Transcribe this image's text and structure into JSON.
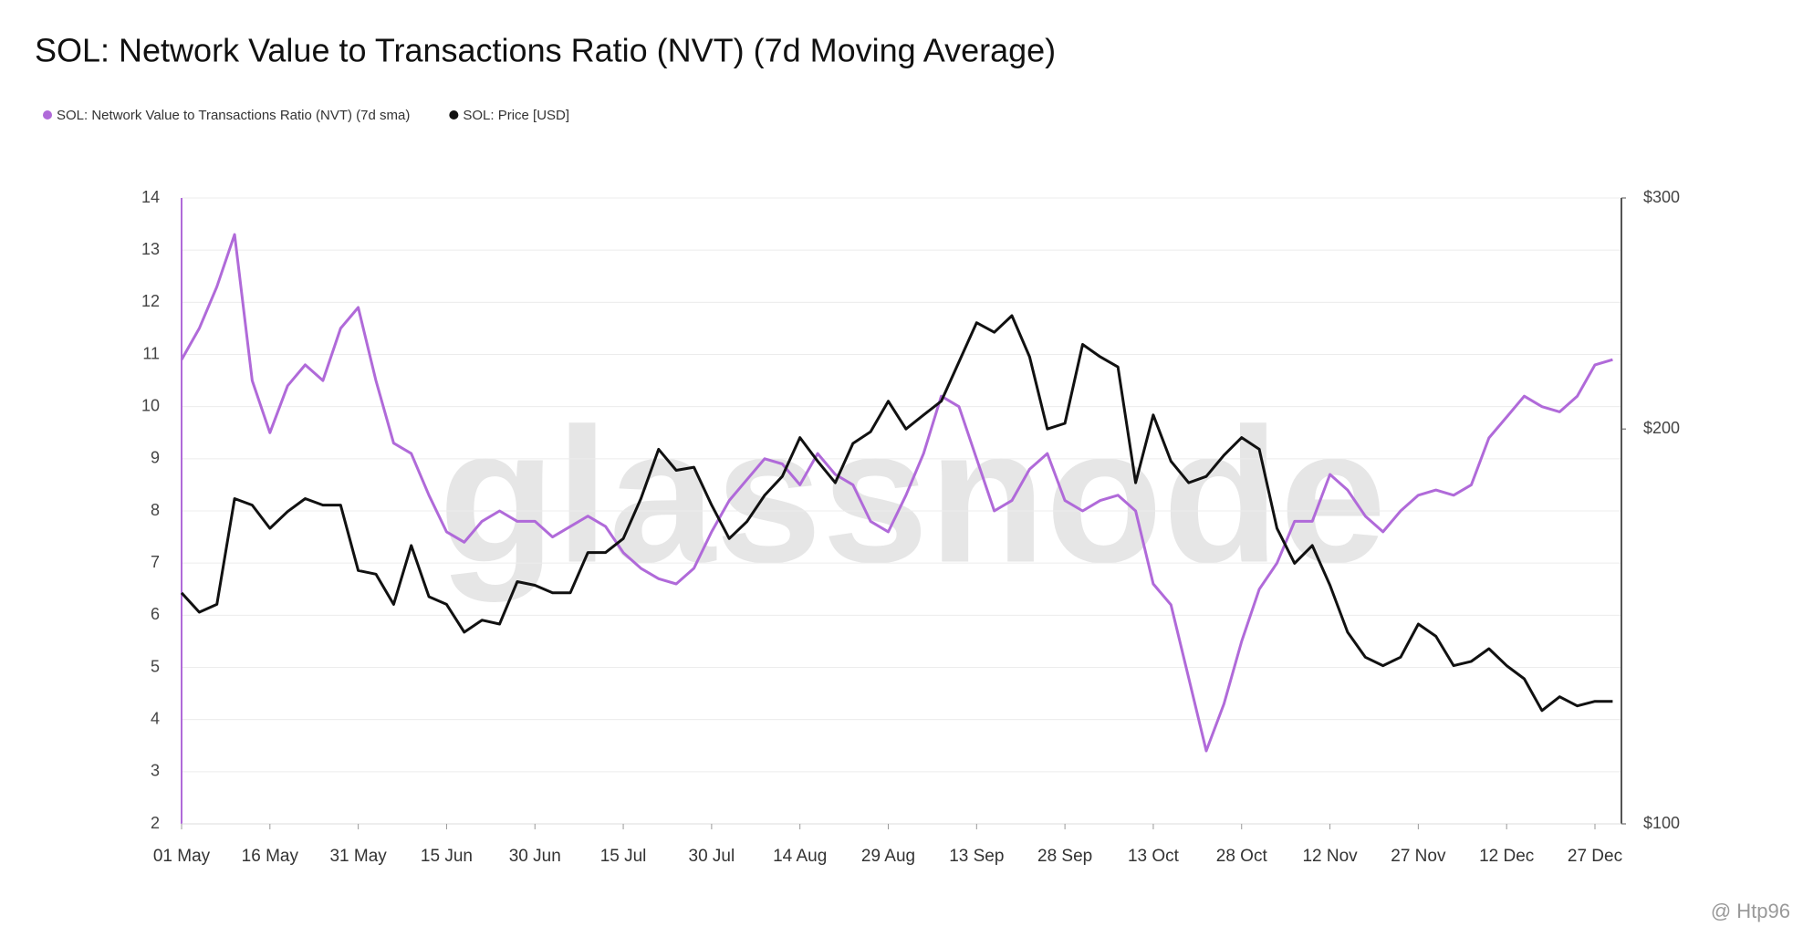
{
  "chart_data": {
    "type": "line",
    "title": "SOL: Network Value to Transactions Ratio (NVT) (7d Moving Average)",
    "watermark": "glassnode",
    "credit": "@ Htp96",
    "x": [
      "01 May",
      "04 May",
      "07 May",
      "10 May",
      "13 May",
      "16 May",
      "19 May",
      "22 May",
      "25 May",
      "28 May",
      "31 May",
      "03 Jun",
      "06 Jun",
      "09 Jun",
      "12 Jun",
      "15 Jun",
      "18 Jun",
      "21 Jun",
      "24 Jun",
      "27 Jun",
      "30 Jun",
      "03 Jul",
      "06 Jul",
      "09 Jul",
      "12 Jul",
      "15 Jul",
      "18 Jul",
      "21 Jul",
      "24 Jul",
      "27 Jul",
      "30 Jul",
      "02 Aug",
      "05 Aug",
      "08 Aug",
      "11 Aug",
      "14 Aug",
      "17 Aug",
      "20 Aug",
      "23 Aug",
      "26 Aug",
      "29 Aug",
      "01 Sep",
      "04 Sep",
      "07 Sep",
      "10 Sep",
      "13 Sep",
      "16 Sep",
      "19 Sep",
      "22 Sep",
      "25 Sep",
      "28 Sep",
      "01 Oct",
      "04 Oct",
      "07 Oct",
      "10 Oct",
      "13 Oct",
      "16 Oct",
      "19 Oct",
      "22 Oct",
      "25 Oct",
      "28 Oct",
      "31 Oct",
      "03 Nov",
      "06 Nov",
      "09 Nov",
      "12 Nov",
      "15 Nov",
      "18 Nov",
      "21 Nov",
      "24 Nov",
      "27 Nov",
      "30 Nov",
      "03 Dec",
      "06 Dec",
      "09 Dec",
      "12 Dec",
      "15 Dec",
      "18 Dec",
      "21 Dec",
      "24 Dec",
      "27 Dec",
      "30 Dec"
    ],
    "xticks": [
      "01 May",
      "16 May",
      "31 May",
      "15 Jun",
      "30 Jun",
      "15 Jul",
      "30 Jul",
      "14 Aug",
      "29 Aug",
      "13 Sep",
      "28 Sep",
      "13 Oct",
      "28 Oct",
      "12 Nov",
      "27 Nov",
      "12 Dec",
      "27 Dec"
    ],
    "series": [
      {
        "name": "SOL: Network Value to Transactions Ratio (NVT) (7d sma)",
        "color": "#b06ad9",
        "axis": "y",
        "values": [
          10.9,
          11.5,
          12.3,
          13.3,
          10.5,
          9.5,
          10.4,
          10.8,
          10.5,
          11.5,
          11.9,
          10.5,
          9.3,
          9.1,
          8.3,
          7.6,
          7.4,
          7.8,
          8.0,
          7.8,
          7.8,
          7.5,
          7.7,
          7.9,
          7.7,
          7.2,
          6.9,
          6.7,
          6.6,
          6.9,
          7.6,
          8.2,
          8.6,
          9.0,
          8.9,
          8.5,
          9.1,
          8.7,
          8.5,
          7.8,
          7.6,
          8.3,
          9.1,
          10.2,
          10.0,
          9.0,
          8.0,
          8.2,
          8.8,
          9.1,
          8.2,
          8.0,
          8.2,
          8.3,
          8.0,
          6.6,
          6.2,
          4.8,
          3.4,
          4.3,
          5.5,
          6.5,
          7.0,
          7.8,
          7.8,
          8.7,
          8.4,
          7.9,
          7.6,
          8.0,
          8.3,
          8.4,
          8.3,
          8.5,
          9.4,
          9.8,
          10.2,
          10.0,
          9.9,
          10.2,
          10.8,
          10.9
        ]
      },
      {
        "name": "SOL: Price [USD]",
        "color": "#111111",
        "axis": "y2",
        "values": [
          150,
          145,
          147,
          177,
          175,
          168,
          173,
          177,
          175,
          175,
          156,
          155,
          147,
          163,
          149,
          147,
          140,
          143,
          142,
          153,
          152,
          150,
          150,
          161,
          161,
          165,
          177,
          193,
          186,
          187,
          175,
          165,
          170,
          178,
          184,
          197,
          189,
          182,
          195,
          199,
          210,
          200,
          205,
          210,
          225,
          241,
          237,
          244,
          227,
          200,
          202,
          232,
          227,
          223,
          182,
          205,
          189,
          182,
          184,
          191,
          197,
          193,
          168,
          158,
          163,
          152,
          140,
          134,
          132,
          134,
          142,
          139,
          132,
          133,
          136,
          132,
          129,
          122,
          125,
          123,
          124,
          124
        ]
      }
    ],
    "ylim": [
      2,
      14
    ],
    "yticks": [
      2,
      3,
      4,
      5,
      6,
      7,
      8,
      9,
      10,
      11,
      12,
      13,
      14
    ],
    "y2lim": [
      100,
      300
    ],
    "y2log": true,
    "y2ticks": [
      {
        "value": 100,
        "label": "$100"
      },
      {
        "value": 200,
        "label": "$200"
      },
      {
        "value": 300,
        "label": "$300"
      }
    ],
    "grid": true
  }
}
